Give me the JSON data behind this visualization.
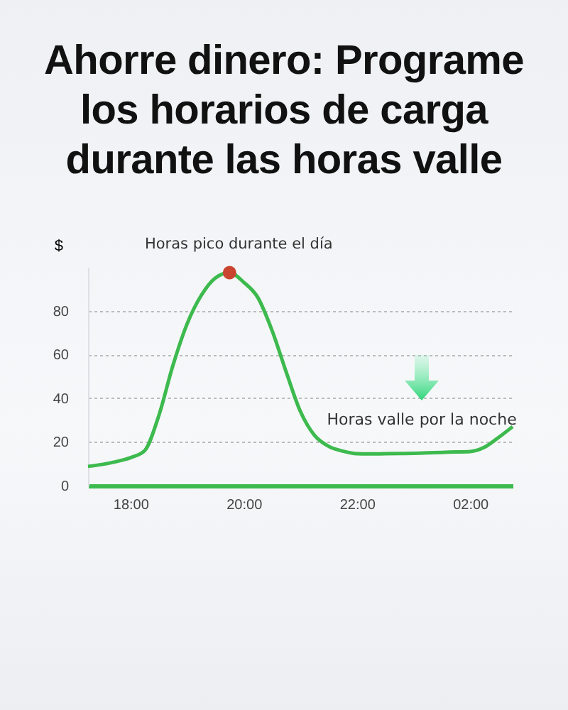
{
  "chart_data": {
    "type": "line",
    "title": "Ahorre dinero: Programe los horarios de carga durante las horas valle",
    "ylabel": "$",
    "categories": [
      null,
      null,
      null,
      "18:00",
      null,
      null,
      null,
      null,
      null,
      null,
      null,
      "20:00",
      null,
      null,
      null,
      null,
      null,
      null,
      null,
      "22:00",
      null,
      null,
      null,
      null,
      null,
      null,
      null,
      "02:00",
      null,
      null,
      null
    ],
    "ylim": [
      0,
      100
    ],
    "yticks": [
      0,
      20,
      40,
      60,
      80
    ],
    "grid": "y",
    "series": [
      {
        "color": "#3dba4e",
        "values": [
          8.8,
          9.7,
          11,
          12.8,
          16,
          32,
          55,
          74,
          87,
          95,
          97.4,
          93,
          86,
          71,
          52,
          34,
          23,
          18,
          15.8,
          14.6,
          14.5,
          14.6,
          14.7,
          14.8,
          15,
          15.2,
          15.4,
          15.6,
          17.5,
          22,
          27
        ]
      },
      {
        "type": "scatter",
        "color": "#c9452f",
        "marker": "circle",
        "values": [
          null,
          null,
          null,
          null,
          null,
          null,
          null,
          null,
          null,
          null,
          97.4,
          null,
          null,
          null,
          null,
          null,
          null,
          null,
          null,
          null,
          null,
          null,
          null,
          null,
          null,
          null,
          null,
          null,
          null,
          null,
          null
        ]
      }
    ],
    "annotations": [
      "Horas pico durante el día",
      "Horas valle por la noche"
    ]
  }
}
